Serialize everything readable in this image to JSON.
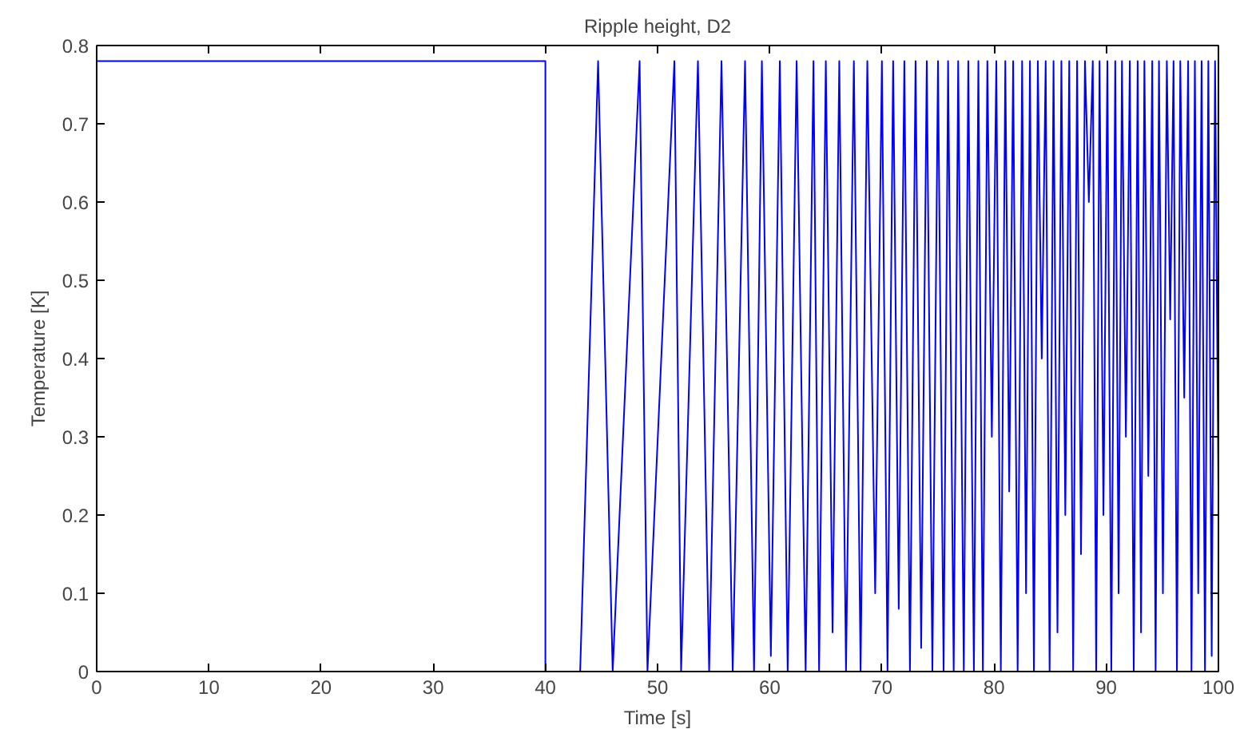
{
  "chart_data": {
    "type": "line",
    "title": "Ripple height, D2",
    "xlabel": "Time [s]",
    "ylabel": "Temperature [K]",
    "xlim": [
      0,
      100
    ],
    "ylim": [
      0,
      0.8
    ],
    "xticks": [
      0,
      10,
      20,
      30,
      40,
      50,
      60,
      70,
      80,
      90,
      100
    ],
    "yticks": [
      0,
      0.1,
      0.2,
      0.3,
      0.4,
      0.5,
      0.6,
      0.7,
      0.8
    ],
    "grid": false,
    "marker": "none",
    "line_style": "solid",
    "series": [
      {
        "color": "#0000ff",
        "x": [
          0,
          40,
          40,
          43.1,
          44.7,
          46.0,
          48.4,
          49.1,
          51.5,
          52.1,
          53.6,
          54.6,
          55.7,
          56.7,
          57.8,
          58.6,
          59.3,
          60.1,
          60.9,
          61.6,
          62.4,
          63.2,
          63.9,
          64.4,
          65.0,
          65.6,
          66.2,
          66.8,
          67.5,
          68.1,
          68.7,
          69.4,
          70.0,
          70.5,
          71.0,
          71.5,
          72.0,
          72.5,
          73.0,
          73.5,
          74.0,
          74.5,
          75.0,
          75.5,
          75.9,
          76.4,
          76.8,
          77.3,
          77.7,
          78.2,
          78.6,
          79.0,
          79.4,
          79.8,
          80.2,
          80.6,
          81.0,
          81.35,
          81.7,
          82.1,
          82.5,
          82.85,
          83.2,
          83.55,
          83.9,
          84.25,
          84.6,
          84.95,
          85.3,
          85.65,
          86.0,
          86.35,
          86.7,
          87.05,
          87.4,
          87.75,
          88.1,
          88.45,
          88.8,
          89.1,
          89.4,
          89.75,
          90.1,
          90.45,
          90.8,
          91.1,
          91.4,
          91.75,
          92.1,
          92.45,
          92.8,
          93.1,
          93.4,
          93.75,
          94.1,
          94.4,
          94.7,
          95.05,
          95.4,
          95.7,
          96.0,
          96.3,
          96.6,
          96.95,
          97.3,
          97.6,
          97.9,
          98.2,
          98.5,
          98.8,
          99.1,
          99.4,
          99.7,
          100
        ],
        "values": [
          0.78,
          0.78,
          0,
          0,
          0.78,
          0,
          0.78,
          0,
          0.78,
          0,
          0.78,
          0,
          0.78,
          0,
          0.78,
          0,
          0.78,
          0.02,
          0.78,
          0,
          0.78,
          0,
          0.78,
          0,
          0.78,
          0.05,
          0.78,
          0,
          0.78,
          0,
          0.78,
          0.1,
          0.78,
          0,
          0.78,
          0.08,
          0.78,
          0,
          0.78,
          0.03,
          0.78,
          0,
          0.78,
          0,
          0.78,
          0,
          0.78,
          0,
          0.78,
          0,
          0.78,
          0,
          0.78,
          0.3,
          0.78,
          0,
          0.78,
          0.23,
          0.78,
          0,
          0.78,
          0.1,
          0.78,
          0,
          0.78,
          0.4,
          0.78,
          0,
          0.78,
          0.05,
          0.78,
          0.2,
          0.78,
          0,
          0.78,
          0.15,
          0.78,
          0.6,
          0.78,
          0,
          0.78,
          0.2,
          0.78,
          0,
          0.78,
          0.1,
          0.78,
          0.3,
          0.78,
          0,
          0.78,
          0.05,
          0.78,
          0.25,
          0.78,
          0,
          0.78,
          0.1,
          0.78,
          0.45,
          0.78,
          0,
          0.78,
          0.35,
          0.78,
          0,
          0.78,
          0.1,
          0.78,
          0,
          0.78,
          0.02,
          0.78,
          0.23
        ]
      }
    ]
  }
}
